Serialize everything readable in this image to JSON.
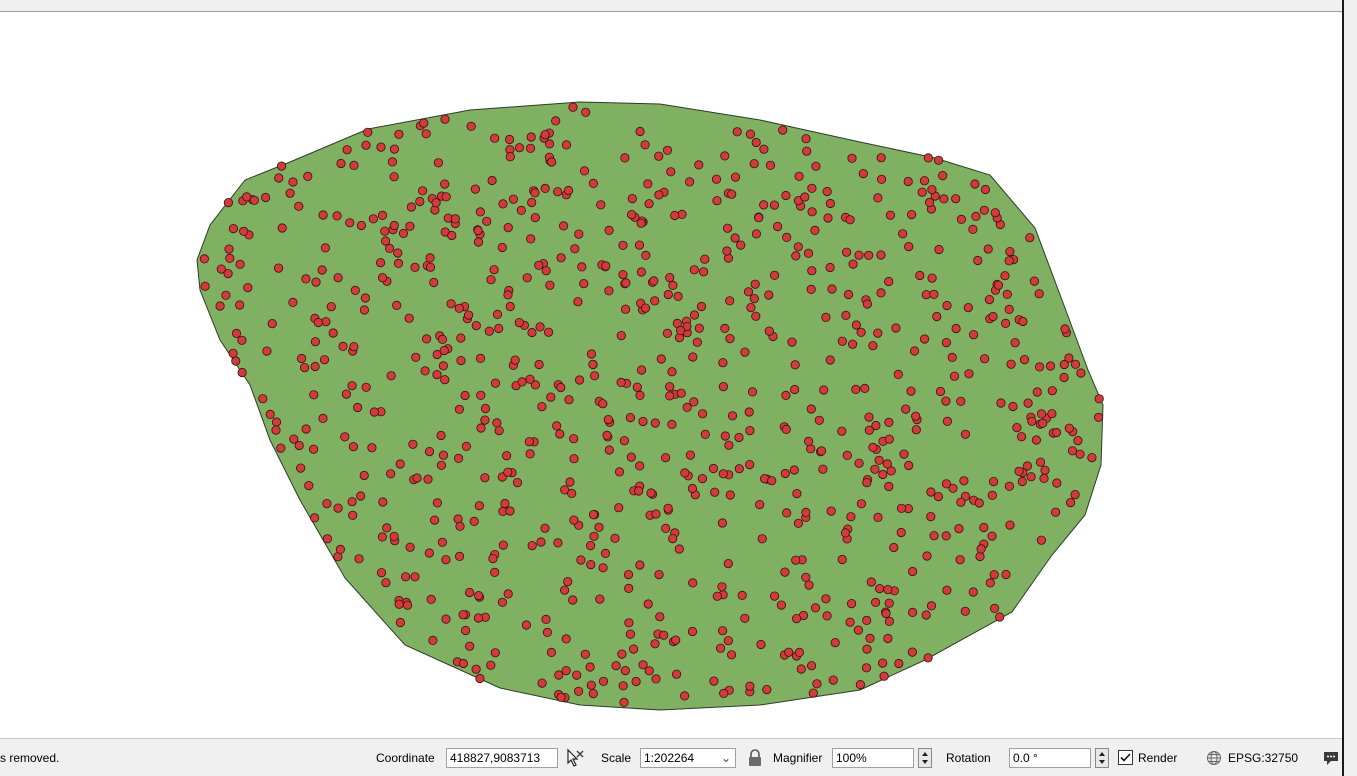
{
  "status_bar": {
    "message": "s removed.",
    "coordinate_label": "Coordinate",
    "coordinate_value": "418827,9083713",
    "scale_label": "Scale",
    "scale_value": "1:202264",
    "magnifier_label": "Magnifier",
    "magnifier_value": "100%",
    "rotation_label": "Rotation",
    "rotation_value": "0.0 °",
    "render_label": "Render",
    "render_checked": true,
    "crs": "EPSG:32750"
  },
  "map": {
    "polygon_fill": "#80b163",
    "polygon_stroke": "#2e3b28",
    "point_fill": "#d13b3b",
    "point_stroke": "#3a1010"
  },
  "icons": {
    "coordinate_toggle": "mouse-pointer-icon",
    "lock": "lock-icon",
    "crs": "globe-icon",
    "messages": "speech-bubble-icon"
  }
}
